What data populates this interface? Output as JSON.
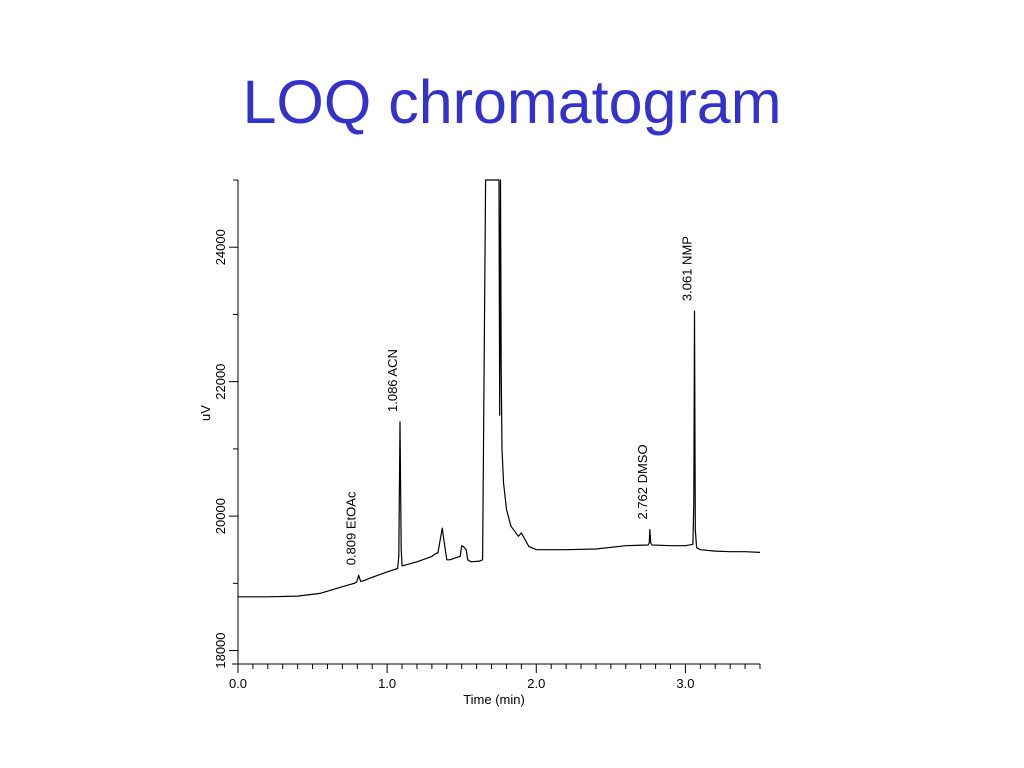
{
  "title": "LOQ chromatogram",
  "chart_data": {
    "type": "line",
    "title": "LOQ chromatogram",
    "xlabel": "Time (min)",
    "ylabel": "uV",
    "xlim": [
      0,
      3.5
    ],
    "ylim": [
      17800,
      25000
    ],
    "x_ticks": [
      {
        "value": 0,
        "label": "0.0"
      },
      {
        "value": 1,
        "label": "1.0"
      },
      {
        "value": 2,
        "label": "2.0"
      },
      {
        "value": 3,
        "label": "3.0"
      }
    ],
    "y_ticks": [
      {
        "value": 18000,
        "label": "18000"
      },
      {
        "value": 20000,
        "label": "20000"
      },
      {
        "value": 22000,
        "label": "22000"
      },
      {
        "value": 24000,
        "label": "24000"
      }
    ],
    "grid": false,
    "line_color": "#000000",
    "series": [
      {
        "x": [
          0.0,
          0.2,
          0.4,
          0.55,
          0.7,
          0.78,
          0.795,
          0.809,
          0.822,
          0.83,
          0.9,
          1.0,
          1.07,
          1.078,
          1.086,
          1.094,
          1.1,
          1.2,
          1.3,
          1.33,
          1.34,
          1.36,
          1.37,
          1.38,
          1.4,
          1.42,
          1.46,
          1.49,
          1.5,
          1.51,
          1.53,
          1.54,
          1.56,
          1.62,
          1.64,
          1.66,
          1.72,
          1.74,
          1.75,
          1.755,
          1.76,
          1.765,
          1.77,
          1.78,
          1.8,
          1.83,
          1.88,
          1.9,
          1.95,
          2.0,
          2.2,
          2.4,
          2.6,
          2.75,
          2.757,
          2.762,
          2.767,
          2.775,
          2.9,
          3.0,
          3.05,
          3.056,
          3.061,
          3.066,
          3.075,
          3.1,
          3.2,
          3.3,
          3.4,
          3.5
        ],
        "y": [
          18800,
          18800,
          18810,
          18850,
          18950,
          19000,
          19020,
          19120,
          19030,
          19030,
          19090,
          19170,
          19220,
          19400,
          21400,
          19500,
          19260,
          19320,
          19400,
          19450,
          19450,
          19700,
          19820,
          19650,
          19350,
          19350,
          19380,
          19400,
          19560,
          19550,
          19500,
          19350,
          19320,
          19330,
          19350,
          25000,
          25000,
          25000,
          25000,
          21500,
          25000,
          22200,
          21000,
          20500,
          20100,
          19850,
          19700,
          19750,
          19550,
          19500,
          19500,
          19510,
          19560,
          19570,
          19600,
          19800,
          19600,
          19570,
          19560,
          19560,
          19580,
          20200,
          23050,
          19800,
          19530,
          19500,
          19480,
          19470,
          19470,
          19460
        ]
      }
    ],
    "annotations": [
      {
        "x": 0.809,
        "y": 19120,
        "text": "0.809 EtOAc"
      },
      {
        "x": 1.086,
        "y": 21400,
        "text": "1.086 ACN"
      },
      {
        "x": 2.762,
        "y": 19800,
        "text": "2.762 DMSO"
      },
      {
        "x": 3.061,
        "y": 23050,
        "text": "3.061 NMP"
      }
    ]
  }
}
